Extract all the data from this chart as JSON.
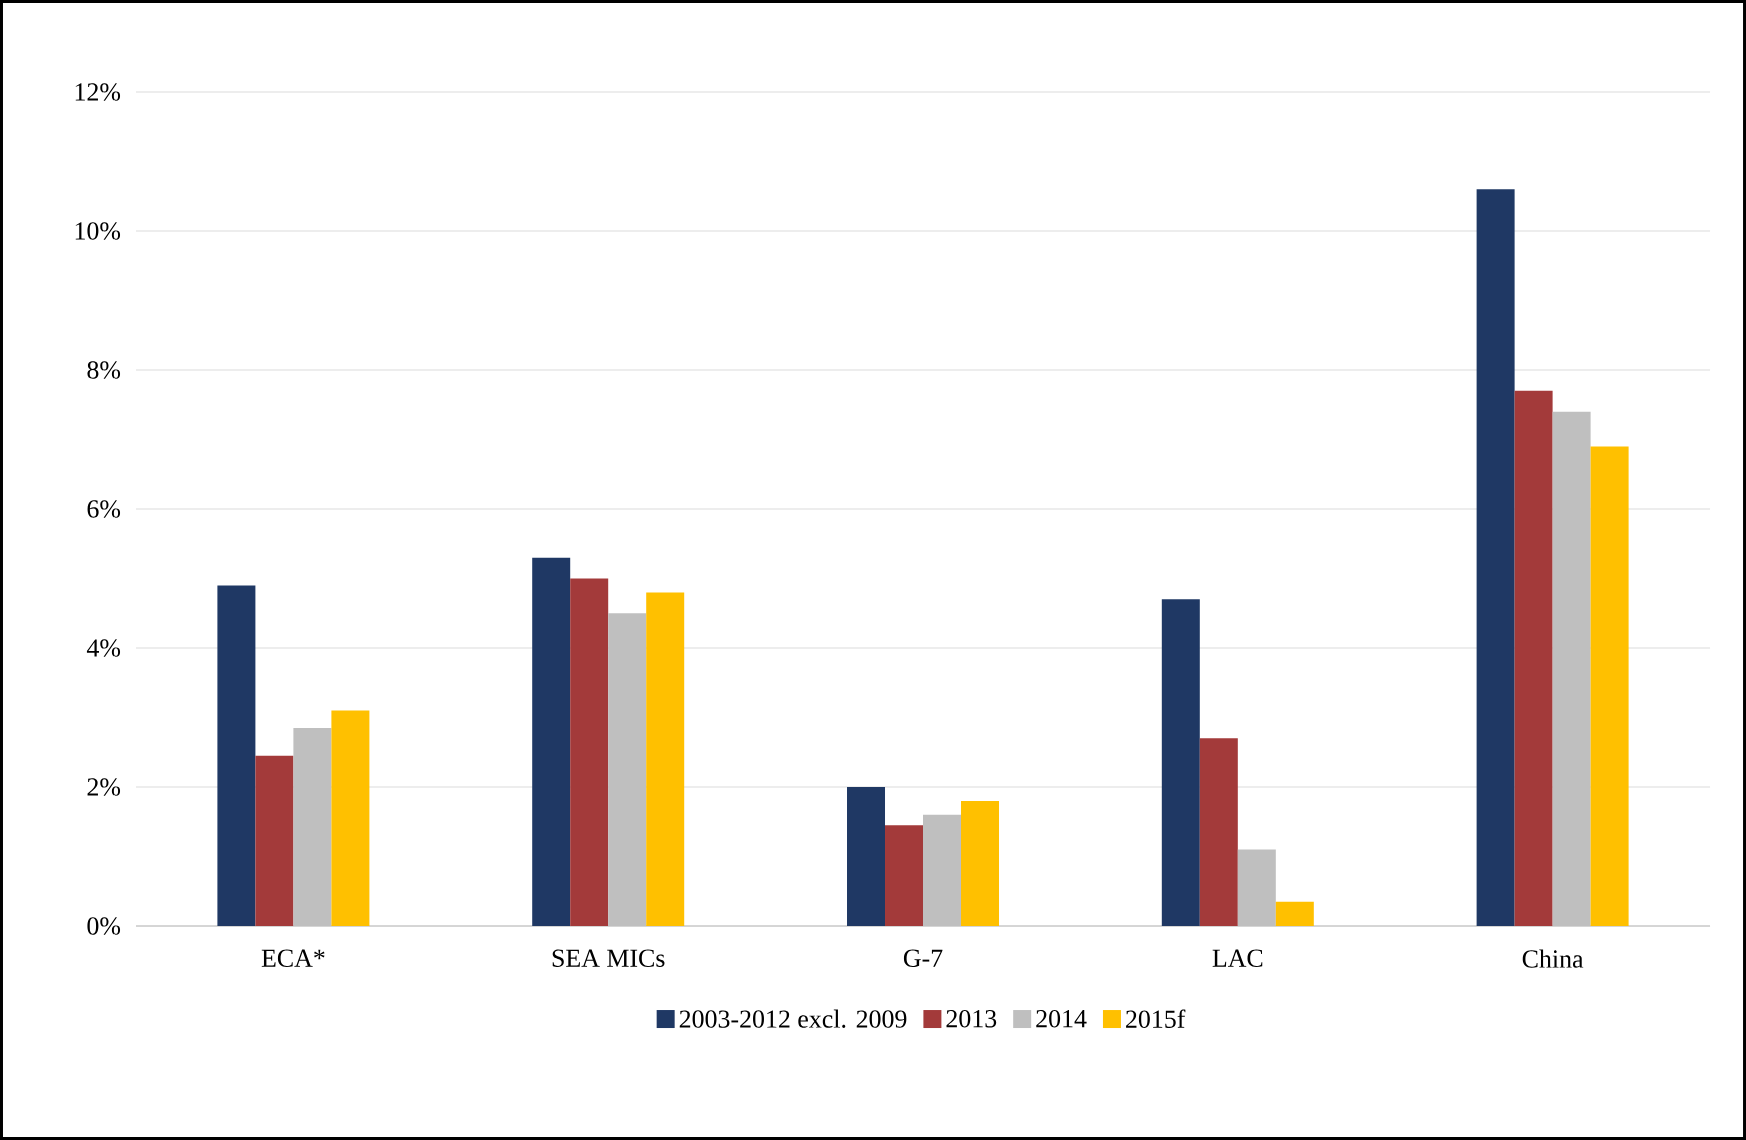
{
  "chart_data": {
    "type": "bar",
    "categories": [
      "ECA*",
      "SEA MICs",
      "G-7",
      "LAC",
      "China"
    ],
    "series": [
      {
        "name": "2003-2012 excl. 2009",
        "color": "#1f3864",
        "values": [
          4.9,
          5.3,
          2.0,
          4.7,
          10.6
        ]
      },
      {
        "name": "2013",
        "color": "#a33a3a",
        "values": [
          2.45,
          5.0,
          1.45,
          2.7,
          7.7
        ]
      },
      {
        "name": "2014",
        "color": "#bfbfbf",
        "values": [
          2.85,
          4.5,
          1.6,
          1.1,
          7.4
        ]
      },
      {
        "name": "2015f",
        "color": "#ffc000",
        "values": [
          3.1,
          4.8,
          1.8,
          0.35,
          6.9
        ]
      }
    ],
    "ylim": [
      0,
      12
    ],
    "yticks": [
      {
        "value": 0,
        "label": "0%"
      },
      {
        "value": 2,
        "label": "2%"
      },
      {
        "value": 4,
        "label": "4%"
      },
      {
        "value": 6,
        "label": "6%"
      },
      {
        "value": 8,
        "label": "8%"
      },
      {
        "value": 10,
        "label": "10%"
      },
      {
        "value": 12,
        "label": "12%"
      }
    ],
    "grid": "y",
    "legend": "bottom"
  }
}
